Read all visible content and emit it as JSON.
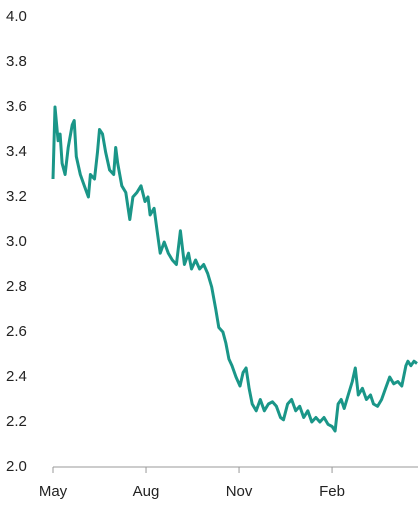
{
  "chart_data": {
    "type": "line",
    "x": [
      0,
      2,
      5,
      7,
      9,
      12,
      15,
      19,
      21,
      23,
      27,
      31,
      35,
      37,
      41,
      44,
      46,
      49,
      52,
      56,
      60,
      62,
      64,
      68,
      72,
      76,
      79,
      83,
      87,
      91,
      94,
      96,
      100,
      103,
      106,
      110,
      114,
      118,
      122,
      126,
      130,
      134,
      137,
      141,
      145,
      149,
      153,
      157,
      161,
      164,
      168,
      171,
      174,
      177,
      181,
      185,
      188,
      191,
      194,
      197,
      201,
      205,
      209,
      213,
      217,
      221,
      225,
      228,
      232,
      236,
      240,
      244,
      248,
      252,
      256,
      260,
      264,
      268,
      272,
      276,
      279,
      282,
      285,
      288,
      292,
      296,
      299,
      302,
      306,
      310,
      314,
      317,
      321,
      325,
      329,
      333,
      337,
      341,
      345,
      349,
      351,
      354,
      357,
      360
    ],
    "series": [
      {
        "color": "#1a9688",
        "values": [
          3.28,
          3.6,
          3.45,
          3.48,
          3.35,
          3.3,
          3.42,
          3.52,
          3.54,
          3.38,
          3.3,
          3.25,
          3.2,
          3.3,
          3.28,
          3.4,
          3.5,
          3.48,
          3.4,
          3.32,
          3.3,
          3.42,
          3.35,
          3.25,
          3.22,
          3.1,
          3.2,
          3.22,
          3.25,
          3.18,
          3.2,
          3.12,
          3.15,
          3.05,
          2.95,
          3.0,
          2.95,
          2.92,
          2.9,
          3.05,
          2.9,
          2.95,
          2.88,
          2.92,
          2.88,
          2.9,
          2.86,
          2.8,
          2.7,
          2.62,
          2.6,
          2.55,
          2.48,
          2.45,
          2.4,
          2.36,
          2.42,
          2.44,
          2.35,
          2.28,
          2.25,
          2.3,
          2.25,
          2.28,
          2.29,
          2.27,
          2.22,
          2.21,
          2.28,
          2.3,
          2.25,
          2.27,
          2.22,
          2.25,
          2.2,
          2.22,
          2.2,
          2.22,
          2.19,
          2.18,
          2.16,
          2.28,
          2.3,
          2.26,
          2.32,
          2.38,
          2.44,
          2.32,
          2.35,
          2.3,
          2.32,
          2.28,
          2.27,
          2.3,
          2.35,
          2.4,
          2.37,
          2.38,
          2.36,
          2.45,
          2.47,
          2.45,
          2.47,
          2.46
        ]
      }
    ],
    "xlim": [
      0,
      361
    ],
    "xticks": [
      {
        "value": 0,
        "label": "May"
      },
      {
        "value": 92,
        "label": "Aug"
      },
      {
        "value": 184,
        "label": "Nov"
      },
      {
        "value": 276,
        "label": "Feb"
      }
    ],
    "ylim": [
      2,
      4
    ],
    "yticks": [
      {
        "value": 2,
        "label": "2.0"
      },
      2.2,
      2.4,
      2.6,
      2.8,
      {
        "value": 3,
        "label": "3.0"
      },
      3.2,
      3.4,
      3.6,
      3.8,
      {
        "value": 4,
        "label": "4.0"
      }
    ]
  }
}
